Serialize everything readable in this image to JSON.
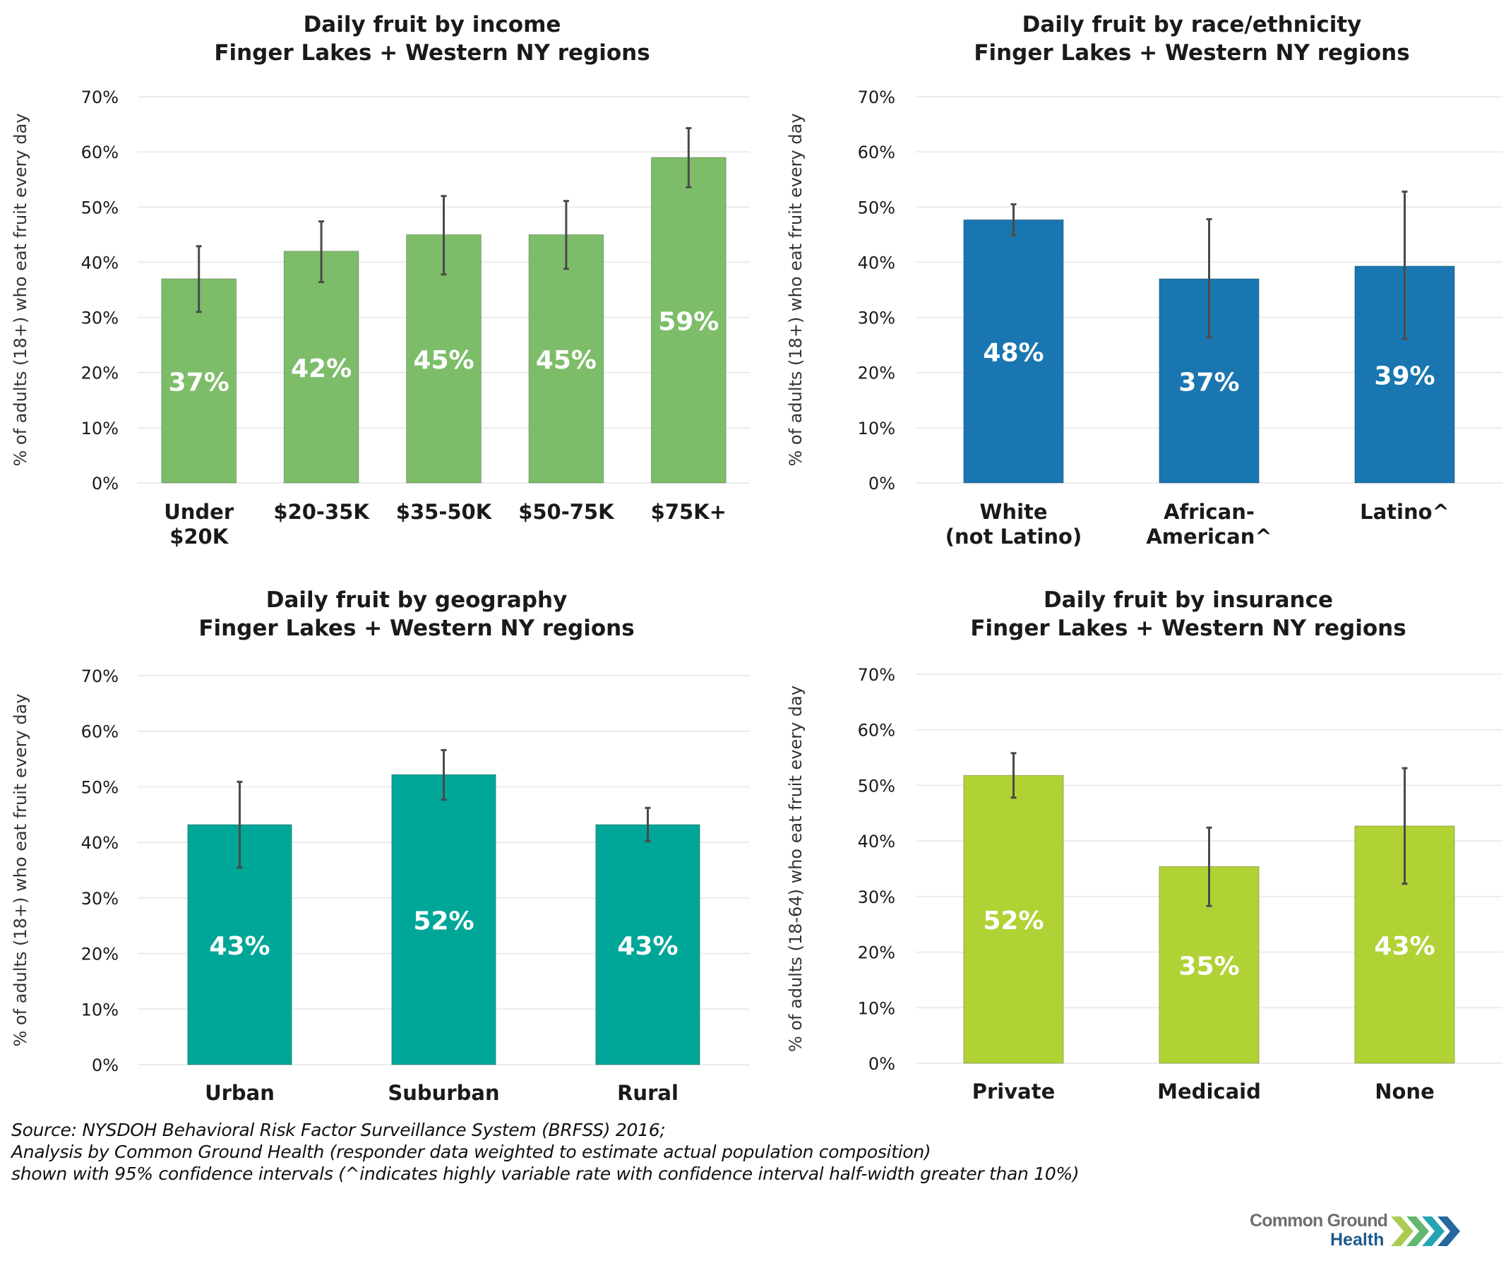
{
  "chart_data": [
    {
      "id": "income",
      "type": "bar",
      "title": [
        "Daily fruit by income",
        "Finger Lakes + Western NY regions"
      ],
      "xlabel": "",
      "ylabel": "% of adults (18+) who eat fruit every day",
      "ylim": [
        0,
        70
      ],
      "yticks": [
        0,
        10,
        20,
        30,
        40,
        50,
        60,
        70
      ],
      "ytick_labels": [
        "0%",
        "10%",
        "20%",
        "30%",
        "40%",
        "50%",
        "60%",
        "70%"
      ],
      "grid": true,
      "color": "#7dbd6a",
      "categories": [
        [
          "Under",
          "$20K"
        ],
        [
          "$20-35K"
        ],
        [
          "$35-50K"
        ],
        [
          "$50-75K"
        ],
        [
          "$75K+"
        ]
      ],
      "values": [
        37,
        42,
        45,
        45,
        59
      ],
      "data_labels": [
        "37%",
        "42%",
        "45%",
        "45%",
        "59%"
      ],
      "ci_low": [
        31,
        36.4,
        37.8,
        38.8,
        53.6
      ],
      "ci_high": [
        42.9,
        47.4,
        52,
        51.1,
        64.3
      ]
    },
    {
      "id": "race",
      "type": "bar",
      "title": [
        "Daily fruit by race/ethnicity",
        "Finger Lakes + Western NY regions"
      ],
      "xlabel": "",
      "ylabel": "% of adults (18+) who eat fruit every day",
      "ylim": [
        0,
        70
      ],
      "yticks": [
        0,
        10,
        20,
        30,
        40,
        50,
        60,
        70
      ],
      "ytick_labels": [
        "0%",
        "10%",
        "20%",
        "30%",
        "40%",
        "50%",
        "60%",
        "70%"
      ],
      "grid": true,
      "color": "#1a76b0",
      "categories": [
        [
          "White",
          "(not Latino)"
        ],
        [
          "African-",
          "American^"
        ],
        [
          "Latino^"
        ]
      ],
      "values": [
        47.7,
        37,
        39.3
      ],
      "data_labels": [
        "48%",
        "37%",
        "39%"
      ],
      "ci_low": [
        44.9,
        26.4,
        26.1
      ],
      "ci_high": [
        50.5,
        47.8,
        52.8
      ]
    },
    {
      "id": "geography",
      "type": "bar",
      "title": [
        "Daily fruit by geography",
        "Finger Lakes + Western NY regions"
      ],
      "xlabel": "",
      "ylabel": "% of adults (18+) who eat fruit every day",
      "ylim": [
        0,
        70
      ],
      "yticks": [
        0,
        10,
        20,
        30,
        40,
        50,
        60,
        70
      ],
      "ytick_labels": [
        "0%",
        "10%",
        "20%",
        "30%",
        "40%",
        "50%",
        "60%",
        "70%"
      ],
      "grid": true,
      "color": "#00a698",
      "categories": [
        [
          "Urban"
        ],
        [
          "Suburban"
        ],
        [
          "Rural"
        ]
      ],
      "values": [
        43.2,
        52.2,
        43.2
      ],
      "data_labels": [
        "43%",
        "52%",
        "43%"
      ],
      "ci_low": [
        35.5,
        47.7,
        40.2
      ],
      "ci_high": [
        50.9,
        56.6,
        46.2
      ]
    },
    {
      "id": "insurance",
      "type": "bar",
      "title": [
        "Daily fruit by insurance",
        "Finger Lakes + Western NY regions"
      ],
      "xlabel": "",
      "ylabel": "% of adults (18-64) who eat fruit every day",
      "ylim": [
        0,
        70
      ],
      "yticks": [
        0,
        10,
        20,
        30,
        40,
        50,
        60,
        70
      ],
      "ytick_labels": [
        "0%",
        "10%",
        "20%",
        "30%",
        "40%",
        "50%",
        "60%",
        "70%"
      ],
      "grid": true,
      "color": "#b0d235",
      "categories": [
        [
          "Private"
        ],
        [
          "Medicaid"
        ],
        [
          "None"
        ]
      ],
      "values": [
        51.8,
        35.4,
        42.7
      ],
      "data_labels": [
        "52%",
        "35%",
        "43%"
      ],
      "ci_low": [
        47.8,
        28.3,
        32.3
      ],
      "ci_high": [
        55.8,
        42.4,
        53.1
      ]
    }
  ],
  "source": {
    "lines": [
      "Source: NYSDOH Behavioral Risk Factor Surveillance System (BRFSS) 2016;",
      "Analysis by Common Ground Health (responder data weighted to estimate actual population composition)",
      "shown with 95% confidence intervals (^indicates highly variable rate with confidence interval half-width greater than 10%)"
    ]
  },
  "logo": {
    "line1": "Common Ground",
    "line2": "Health",
    "icon": "chevrons-right-icon",
    "chevron_colors": [
      "#a6c94a",
      "#5bb36b",
      "#1b9fb0",
      "#1b5f99"
    ]
  },
  "style": {
    "errorbar_color": "#4a4a4a",
    "grid_color": "#ececec",
    "text_color": "#1a1a1a",
    "label_color": "#ffffff"
  }
}
